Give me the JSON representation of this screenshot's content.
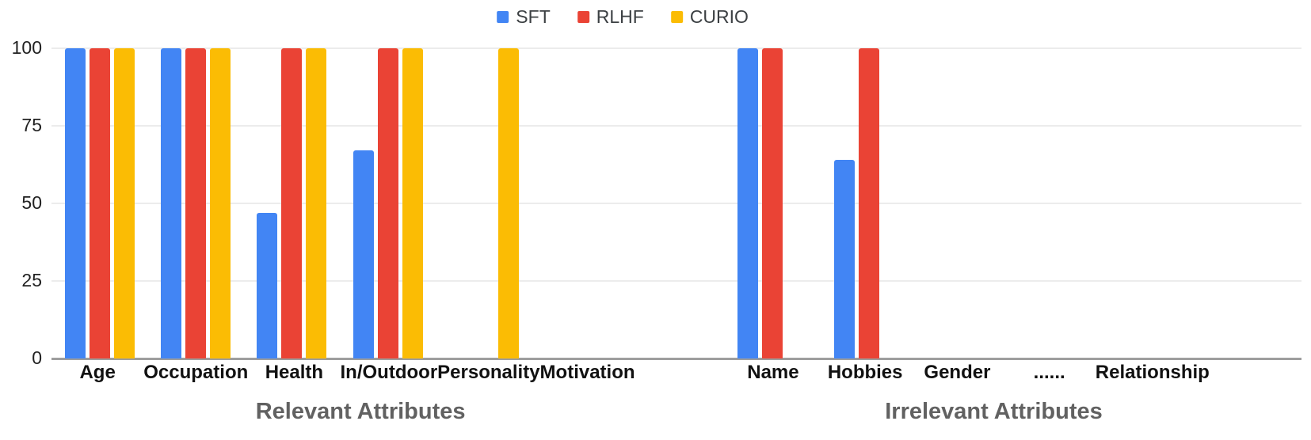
{
  "legend": {
    "items": [
      {
        "label": "SFT",
        "color": "#4285F4"
      },
      {
        "label": "RLHF",
        "color": "#EA4335"
      },
      {
        "label": "CURIO",
        "color": "#FBBC04"
      }
    ]
  },
  "y_axis": {
    "tick_labels": [
      "0",
      "25",
      "50",
      "75",
      "100"
    ]
  },
  "chart_data": {
    "type": "bar",
    "title": "",
    "xlabel": "",
    "ylabel": "",
    "categories": [
      "Age",
      "Occupation",
      "Health",
      "In/Outdoor",
      "Personality",
      "Motivation",
      "Name",
      "Hobbies",
      "Gender",
      "......",
      "Relationship"
    ],
    "series": [
      {
        "name": "SFT",
        "color": "#4285F4",
        "values": [
          100,
          100,
          47,
          67,
          0,
          0,
          100,
          64,
          0,
          0,
          0
        ]
      },
      {
        "name": "RLHF",
        "color": "#EA4335",
        "values": [
          100,
          100,
          100,
          100,
          0,
          0,
          100,
          100,
          0,
          0,
          0
        ]
      },
      {
        "name": "CURIO",
        "color": "#FBBC04",
        "values": [
          100,
          100,
          100,
          100,
          100,
          0,
          0,
          0,
          0,
          0,
          0
        ]
      }
    ],
    "ylim": [
      0,
      100
    ],
    "yticks": [
      0,
      25,
      50,
      75,
      100
    ],
    "grid": true,
    "legend_position": "top",
    "gap_after_category_index": 5,
    "trailing_empty_slots": 1,
    "groups": [
      {
        "label": "Relevant Attributes",
        "start": 0,
        "end": 5
      },
      {
        "label": "Irrelevant Attributes",
        "start": 6,
        "end": 10
      }
    ],
    "colors": {
      "gridline": "#ececec",
      "baseline": "#9e9e9e",
      "axis_text": "#222222",
      "category_text": "#111111",
      "group_label_text": "#616161"
    }
  }
}
